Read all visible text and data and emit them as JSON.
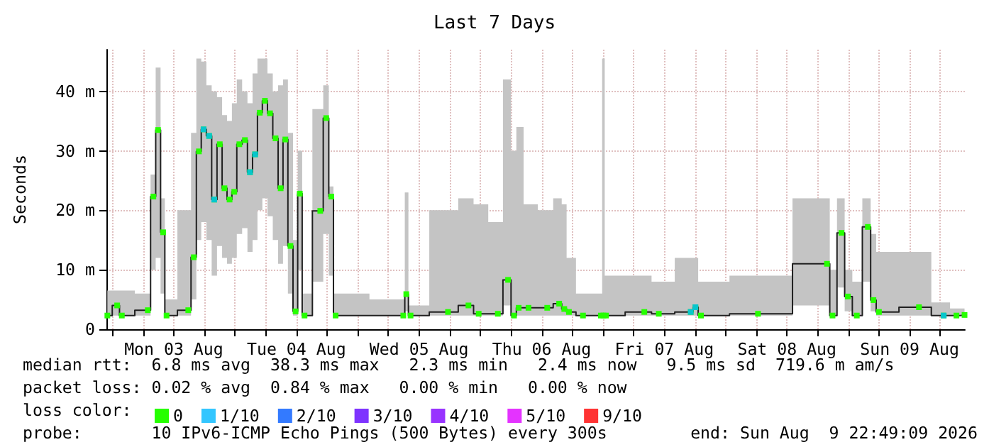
{
  "chart_data": {
    "type": "step",
    "title": "Last 7 Days",
    "ylabel": "Seconds",
    "xlim": [
      "2026-08-02T22:49",
      "2026-08-09T22:49"
    ],
    "xticks": [
      {
        "value": "2026-08-03T00:00",
        "label": null
      },
      {
        "value": "2026-08-03T06:00",
        "label": null
      },
      {
        "value": "2026-08-03T12:00",
        "label": "Mon 03 Aug"
      },
      {
        "value": "2026-08-03T18:00",
        "label": null
      },
      {
        "value": "2026-08-04T00:00",
        "label": null
      },
      {
        "value": "2026-08-04T06:00",
        "label": null
      },
      {
        "value": "2026-08-04T12:00",
        "label": "Tue 04 Aug"
      },
      {
        "value": "2026-08-04T18:00",
        "label": null
      },
      {
        "value": "2026-08-05T00:00",
        "label": null
      },
      {
        "value": "2026-08-05T06:00",
        "label": null
      },
      {
        "value": "2026-08-05T12:00",
        "label": "Wed 05 Aug"
      },
      {
        "value": "2026-08-05T18:00",
        "label": null
      },
      {
        "value": "2026-08-06T00:00",
        "label": null
      },
      {
        "value": "2026-08-06T06:00",
        "label": null
      },
      {
        "value": "2026-08-06T12:00",
        "label": "Thu 06 Aug"
      },
      {
        "value": "2026-08-06T18:00",
        "label": null
      },
      {
        "value": "2026-08-07T00:00",
        "label": null
      },
      {
        "value": "2026-08-07T06:00",
        "label": null
      },
      {
        "value": "2026-08-07T12:00",
        "label": "Fri 07 Aug"
      },
      {
        "value": "2026-08-07T18:00",
        "label": null
      },
      {
        "value": "2026-08-08T00:00",
        "label": null
      },
      {
        "value": "2026-08-08T06:00",
        "label": null
      },
      {
        "value": "2026-08-08T12:00",
        "label": "Sat 08 Aug"
      },
      {
        "value": "2026-08-08T18:00",
        "label": null
      },
      {
        "value": "2026-08-09T00:00",
        "label": null
      },
      {
        "value": "2026-08-09T06:00",
        "label": null
      },
      {
        "value": "2026-08-09T12:00",
        "label": "Sun 09 Aug"
      },
      {
        "value": "2026-08-09T18:00",
        "label": null
      }
    ],
    "ylim": [
      0,
      47
    ],
    "yticks": [
      0,
      {
        "value": 10,
        "label": "10 m"
      },
      {
        "value": 20,
        "label": "20 m"
      },
      {
        "value": 30,
        "label": "30 m"
      },
      {
        "value": 40,
        "label": "40 m"
      }
    ],
    "grid": true,
    "legend": "bottom left",
    "legend_title": "loss color:",
    "marker": "square",
    "annotations": [
      "median rtt:  6.8 ms avg  38.3 ms max   2.3 ms min   2.4 ms now   9.5 ms sd  719.6 m am/s",
      "packet loss: 0.02 % avg  0.84 % max   0.00 % min   0.00 % now",
      "probe:       10 IPv6-ICMP Echo Pings (500 Bytes) every 300s",
      "end: Sun Aug  9 22:49:09 2026"
    ],
    "series": [
      {
        "name": "0",
        "color": "#26ff00",
        "x": [
          "2026-08-02T23:00",
          "2026-08-03T00:55",
          "2026-08-03T01:50",
          "2026-08-03T06:55",
          "2026-08-03T08:00",
          "2026-08-03T08:55",
          "2026-08-03T09:55",
          "2026-08-03T10:35",
          "2026-08-03T14:50",
          "2026-08-03T15:55",
          "2026-08-03T16:55",
          "2026-08-03T17:50",
          "2026-08-03T18:55",
          "2026-08-03T19:55",
          "2026-08-03T21:00",
          "2026-08-03T21:55",
          "2026-08-03T22:55",
          "2026-08-03T23:50",
          "2026-08-04T00:50",
          "2026-08-04T01:55",
          "2026-08-04T02:55",
          "2026-08-04T03:55",
          "2026-08-04T04:50",
          "2026-08-04T05:50",
          "2026-08-04T06:50",
          "2026-08-04T07:55",
          "2026-08-04T08:55",
          "2026-08-04T09:50",
          "2026-08-04T10:50",
          "2026-08-04T11:50",
          "2026-08-04T12:40",
          "2026-08-04T13:35",
          "2026-08-04T16:40",
          "2026-08-04T17:50",
          "2026-08-04T18:50",
          "2026-08-04T19:40",
          "2026-08-05T08:55",
          "2026-08-05T09:30",
          "2026-08-05T10:20",
          "2026-08-05T17:40",
          "2026-08-05T21:40",
          "2026-08-05T23:40",
          "2026-08-06T03:25",
          "2026-08-06T05:25",
          "2026-08-06T06:35",
          "2026-08-06T07:30",
          "2026-08-06T09:25",
          "2026-08-06T13:05",
          "2026-08-06T15:25",
          "2026-08-06T16:25",
          "2026-08-06T17:20",
          "2026-08-06T20:05",
          "2026-08-06T23:35",
          "2026-08-07T00:05",
          "2026-08-07T00:35",
          "2026-08-07T08:05",
          "2026-08-07T10:55",
          "2026-08-07T17:10",
          "2026-08-07T18:05",
          "2026-08-07T19:10",
          "2026-08-08T06:20",
          "2026-08-08T19:50",
          "2026-08-08T20:55",
          "2026-08-08T22:40",
          "2026-08-08T23:55",
          "2026-08-09T01:40",
          "2026-08-09T03:50",
          "2026-08-09T04:55",
          "2026-08-09T06:00",
          "2026-08-09T13:50",
          "2026-08-09T18:40",
          "2026-08-09T21:10",
          "2026-08-09T22:45"
        ],
        "values": [
          2.3,
          4.0,
          2.3,
          3.2,
          22.3,
          33.5,
          16.3,
          2.3,
          3.2,
          12.1,
          29.9,
          33.6,
          32.5,
          21.8,
          31.1,
          23.7,
          21.8,
          23.1,
          31.1,
          31.8,
          26.4,
          29.4,
          36.4,
          38.4,
          36.3,
          32.1,
          23.7,
          31.9,
          14.0,
          3.0,
          22.8,
          2.3,
          19.9,
          35.5,
          22.3,
          2.3,
          2.3,
          5.9,
          2.3,
          2.9,
          4.0,
          2.6,
          2.6,
          8.3,
          2.3,
          3.6,
          3.6,
          3.6,
          4.3,
          3.4,
          2.9,
          2.3,
          2.3,
          2.3,
          2.3,
          2.9,
          2.6,
          2.9,
          3.7,
          2.3,
          2.6,
          11.0,
          2.3,
          16.2,
          5.5,
          2.3,
          17.2,
          4.9,
          2.9,
          3.7,
          2.3,
          2.3,
          2.4
        ],
        "lower": [
          2.3,
          2.3,
          2.3,
          2.3,
          10,
          12,
          6,
          2.3,
          2.3,
          5,
          15,
          18,
          15,
          9,
          14,
          12,
          11,
          12,
          16,
          17,
          13,
          15,
          20,
          22,
          19,
          15,
          11,
          14,
          6,
          2.3,
          10,
          2.3,
          8,
          16,
          9,
          2.3,
          2.3,
          3,
          2.3,
          2.3,
          2.3,
          2.3,
          2.3,
          4,
          2.3,
          2.3,
          2.3,
          2.3,
          2.3,
          2.3,
          2.3,
          2.3,
          2.3,
          2.3,
          2.3,
          2.3,
          2.3,
          2.3,
          2.3,
          2.3,
          2.3,
          4,
          2.3,
          7,
          3,
          2.3,
          8,
          3,
          2.3,
          2.3,
          2.3,
          2.3,
          2.3
        ],
        "upper": [
          6.5,
          6.5,
          6.5,
          6,
          26,
          44,
          22,
          5,
          20,
          33,
          45.5,
          45,
          41,
          40,
          39,
          36,
          35,
          38,
          42,
          40,
          38,
          43,
          45.5,
          45.5,
          43,
          40,
          41,
          42,
          33,
          15,
          30,
          6,
          37,
          41,
          24,
          6,
          5,
          23,
          4,
          20,
          22,
          21,
          18,
          42,
          30,
          34,
          21,
          20,
          22,
          21,
          12,
          6,
          6,
          45.5,
          9,
          9,
          8,
          12,
          12,
          8,
          9,
          22,
          10,
          22,
          10,
          8,
          22,
          16,
          13,
          13,
          4.5,
          3.5,
          3.5
        ]
      },
      {
        "name": "1/10",
        "color": "#00b8ff",
        "type": "scatter",
        "x": [
          "2026-08-03T17:50",
          "2026-08-03T18:55",
          "2026-08-03T19:55",
          "2026-08-04T02:55",
          "2026-08-04T03:55",
          "2026-08-07T17:10",
          "2026-08-07T18:05",
          "2026-08-09T18:40"
        ],
        "values": [
          33.6,
          32.5,
          21.8,
          26.4,
          29.4,
          2.9,
          3.7,
          2.3
        ]
      },
      {
        "name": "2/10",
        "color": "#0059ff",
        "type": "scatter"
      },
      {
        "name": "3/10",
        "color": "#5e00ff",
        "type": "scatter"
      },
      {
        "name": "4/10",
        "color": "#7e00ff",
        "type": "scatter"
      },
      {
        "name": "5/10",
        "color": "#dd00ff",
        "type": "scatter"
      },
      {
        "name": "9/10",
        "color": "#ff0000",
        "type": "scatter"
      }
    ]
  }
}
